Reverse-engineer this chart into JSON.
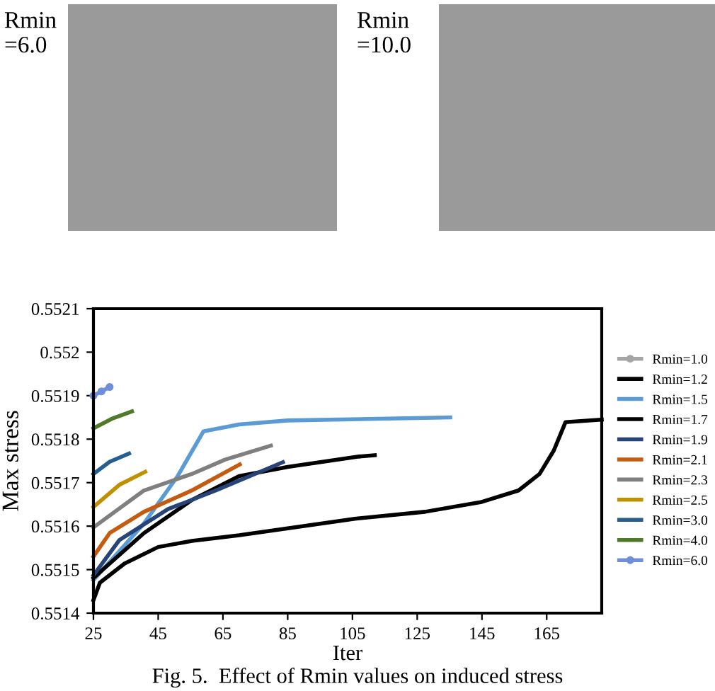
{
  "chart_data": {
    "type": "line",
    "xlabel": "Iter",
    "ylabel": "Max stress",
    "annotations": [
      "Rmin\n=6.0",
      "Rmin\n=10.0",
      "Fig. 5.  Effect of Rmin values on induced stress"
    ],
    "xlim": [
      25,
      182
    ],
    "xticks": [
      25,
      45,
      65,
      85,
      105,
      125,
      145,
      165
    ],
    "ylim": [
      0.5514,
      0.5521
    ],
    "yticks": [
      0.5514,
      0.5515,
      0.5516,
      0.5517,
      0.5518,
      0.5519,
      0.552,
      0.5521
    ],
    "grid": false,
    "legend": "right",
    "line_style": "solid",
    "series": [
      {
        "name": "Rmin=1.0",
        "color": "#a5a5a5",
        "marker": "circle"
      },
      {
        "name": "Rmin=1.2",
        "color": "#000000",
        "x": [
          25,
          27,
          34.6,
          45,
          55.4,
          70,
          85,
          105.7,
          127.4,
          144.6,
          156.3,
          162.8,
          167.2,
          170.8,
          182
        ],
        "values": [
          0.55143,
          0.55147,
          0.551514,
          0.551552,
          0.551566,
          0.551579,
          0.551595,
          0.551617,
          0.551633,
          0.551655,
          0.551682,
          0.55172,
          0.551774,
          0.551839,
          0.551845
        ]
      },
      {
        "name": "Rmin=1.5",
        "color": "#5b9bd5",
        "x": [
          25,
          40.6,
          51,
          59,
          70,
          85,
          135.2
        ],
        "values": [
          0.551476,
          0.551606,
          0.551715,
          0.551818,
          0.551834,
          0.551843,
          0.55185
        ]
      },
      {
        "name": "Rmin=1.7",
        "color": "#000000",
        "x": [
          25,
          40.6,
          55.4,
          70,
          85,
          107,
          111.9
        ],
        "values": [
          0.551481,
          0.551584,
          0.55166,
          0.551715,
          0.551736,
          0.55176,
          0.551763
        ]
      },
      {
        "name": "Rmin=1.9",
        "color": "#264478",
        "x": [
          25,
          33,
          48,
          62.8,
          83.5
        ],
        "values": [
          0.551487,
          0.551568,
          0.551639,
          0.551682,
          0.551747
        ]
      },
      {
        "name": "Rmin=2.1",
        "color": "#c55a11",
        "x": [
          25,
          30,
          40.6,
          55.4,
          70.2
        ],
        "values": [
          0.55153,
          0.551584,
          0.551633,
          0.551682,
          0.551742
        ]
      },
      {
        "name": "Rmin=2.3",
        "color": "#7f7f7f",
        "x": [
          25,
          40.6,
          55.4,
          65.7,
          79.8
        ],
        "values": [
          0.551597,
          0.551682,
          0.55172,
          0.551753,
          0.551785
        ]
      },
      {
        "name": "Rmin=2.5",
        "color": "#bf9000",
        "x": [
          25,
          33,
          41
        ],
        "values": [
          0.551644,
          0.551695,
          0.551725
        ]
      },
      {
        "name": "Rmin=3.0",
        "color": "#255e91",
        "x": [
          25,
          30,
          36
        ],
        "values": [
          0.55172,
          0.551748,
          0.551767
        ]
      },
      {
        "name": "Rmin=4.0",
        "color": "#4e7a2a",
        "x": [
          25,
          31,
          36.9
        ],
        "values": [
          0.551825,
          0.551848,
          0.551864
        ]
      },
      {
        "name": "Rmin=6.0",
        "color": "#6f8fd8",
        "marker": "circle",
        "x": [
          25,
          27.5,
          30
        ],
        "values": [
          0.5519,
          0.55191,
          0.55192
        ]
      }
    ]
  }
}
